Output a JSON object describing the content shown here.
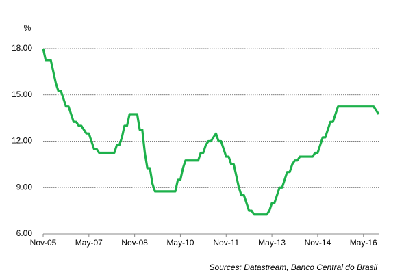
{
  "chart_data": {
    "type": "line",
    "y_unit": "%",
    "source": "Sources: Datastream, Banco Central do Brasil",
    "categories": [
      "Nov-05",
      null,
      null,
      null,
      null,
      null,
      null,
      null,
      null,
      null,
      null,
      null,
      null,
      null,
      null,
      null,
      null,
      null,
      "May-07",
      null,
      null,
      null,
      null,
      null,
      null,
      null,
      null,
      null,
      null,
      null,
      null,
      null,
      null,
      null,
      null,
      null,
      "Nov-08",
      null,
      null,
      null,
      null,
      null,
      null,
      null,
      null,
      null,
      null,
      null,
      null,
      null,
      null,
      null,
      null,
      null,
      "May-10",
      null,
      null,
      null,
      null,
      null,
      null,
      null,
      null,
      null,
      null,
      null,
      null,
      null,
      null,
      null,
      null,
      null,
      "Nov-11",
      null,
      null,
      null,
      null,
      null,
      null,
      null,
      null,
      null,
      null,
      null,
      null,
      null,
      null,
      null,
      null,
      null,
      "May-13",
      null,
      null,
      null,
      null,
      null,
      null,
      null,
      null,
      null,
      null,
      null,
      null,
      null,
      null,
      null,
      null,
      null,
      "Nov-14",
      null,
      null,
      null,
      null,
      null,
      null,
      null,
      null,
      null,
      null,
      null,
      null,
      null,
      null,
      null,
      null,
      null,
      "May-16",
      null,
      null,
      null,
      null,
      null,
      null
    ],
    "series": [
      {
        "color": "#1db14b",
        "values": [
          18,
          17.25,
          17.25,
          17.25,
          16.5,
          15.75,
          15.25,
          15.25,
          14.75,
          14.25,
          14.25,
          13.75,
          13.25,
          13.25,
          13,
          13,
          12.75,
          12.5,
          12.5,
          12,
          11.5,
          11.5,
          11.25,
          11.25,
          11.25,
          11.25,
          11.25,
          11.25,
          11.25,
          11.75,
          11.75,
          12.25,
          13,
          13,
          13.75,
          13.75,
          13.75,
          13.75,
          12.75,
          12.75,
          11.25,
          10.25,
          10.25,
          9.25,
          8.75,
          8.75,
          8.75,
          8.75,
          8.75,
          8.75,
          8.75,
          8.75,
          8.75,
          9.5,
          9.5,
          10.25,
          10.75,
          10.75,
          10.75,
          10.75,
          10.75,
          10.75,
          11.25,
          11.25,
          11.75,
          12,
          12,
          12.25,
          12.5,
          12,
          12,
          11.5,
          11,
          11,
          10.5,
          10.5,
          9.75,
          9,
          8.5,
          8.5,
          8,
          7.5,
          7.5,
          7.25,
          7.25,
          7.25,
          7.25,
          7.25,
          7.25,
          7.5,
          8,
          8,
          8.5,
          9,
          9,
          9.5,
          10,
          10,
          10.5,
          10.75,
          10.75,
          11,
          11,
          11,
          11,
          11,
          11,
          11.25,
          11.25,
          11.75,
          12.25,
          12.25,
          12.75,
          13.25,
          13.25,
          13.75,
          14.25,
          14.25,
          14.25,
          14.25,
          14.25,
          14.25,
          14.25,
          14.25,
          14.25,
          14.25,
          14.25,
          14.25,
          14.25,
          14.25,
          14.25,
          14,
          13.75
        ]
      }
    ],
    "ylim": [
      6,
      18
    ],
    "yticks": [
      {
        "value": 6,
        "label": "6.00"
      },
      {
        "value": 9,
        "label": "9.00"
      },
      {
        "value": 12,
        "label": "12.00"
      },
      {
        "value": 15,
        "label": "15.00"
      },
      {
        "value": 18,
        "label": "18.00"
      }
    ],
    "grid": true
  }
}
